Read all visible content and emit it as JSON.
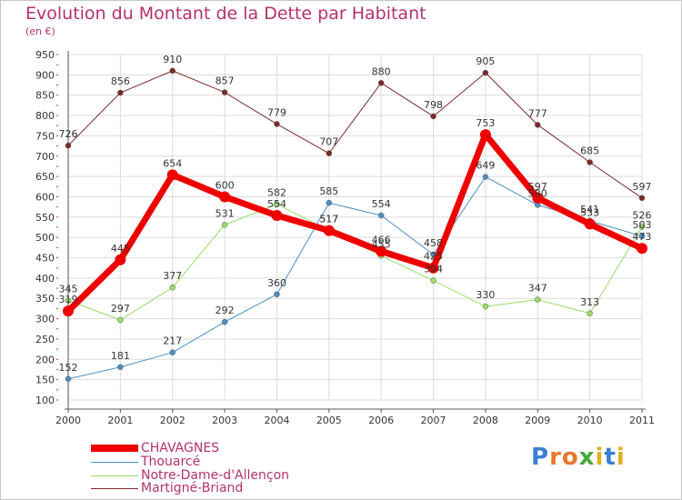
{
  "title": "Evolution du Montant de la Dette par Habitant",
  "subtitle": "(en €)",
  "logo_text": "Proxiti",
  "colors": {
    "title": "#b3316f",
    "grid": "#dcdcdc",
    "axis": "#555555",
    "chavagnes": "#ee0000",
    "thouarce": "#4a8fc6",
    "notre_dame": "#99dd66",
    "martigne": "#7a2a2a"
  },
  "chart_data": {
    "type": "line",
    "title": "Evolution du Montant de la Dette par Habitant",
    "ylabel": "(en €)",
    "xlabel": "",
    "x": [
      "2000",
      "2001",
      "2002",
      "2003",
      "2004",
      "2005",
      "2006",
      "2007",
      "2008",
      "2009",
      "2010",
      "2011"
    ],
    "ylim": [
      100,
      950
    ],
    "yticks": [
      100,
      150,
      200,
      250,
      300,
      350,
      400,
      450,
      500,
      550,
      600,
      650,
      700,
      750,
      800,
      850,
      900,
      950
    ],
    "grid": true,
    "legend_position": "bottom-left",
    "series": [
      {
        "name": "CHAVAGNES",
        "color": "#ee0000",
        "width": 7,
        "marker": 6,
        "values": [
          319,
          445,
          654,
          600,
          554,
          517,
          466,
          425,
          753,
          597,
          533,
          473
        ]
      },
      {
        "name": "Thouarcé",
        "color": "#4a8fc6",
        "width": 1,
        "marker": 3,
        "values": [
          152,
          181,
          217,
          292,
          360,
          585,
          554,
          458,
          649,
          580,
          541,
          503
        ]
      },
      {
        "name": "Notre-Dame-d'Allençon",
        "color": "#99dd66",
        "width": 1,
        "marker": 3,
        "values": [
          345,
          297,
          377,
          531,
          582,
          517,
          455,
          394,
          330,
          347,
          313,
          526
        ]
      },
      {
        "name": "Martigné-Briand",
        "color": "#7a2a2a",
        "width": 1,
        "marker": 3,
        "values": [
          726,
          856,
          910,
          857,
          779,
          707,
          880,
          798,
          905,
          777,
          685,
          597
        ]
      }
    ]
  }
}
